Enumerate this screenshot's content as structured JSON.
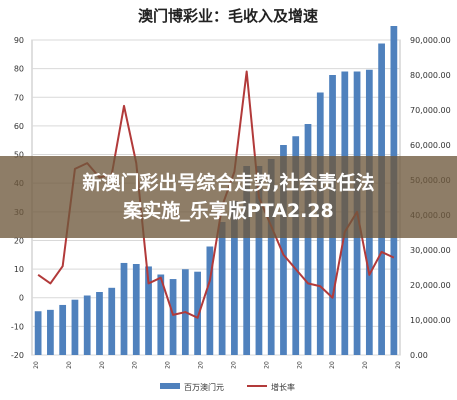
{
  "overlay": {
    "line1": "新澳门彩出号综合走势,社会责任法",
    "line2": "案实施_乐享版PTA2.28"
  },
  "chart_data": {
    "type": "bar",
    "title": "澳门博彩业：毛收入及增速",
    "xlabel": "",
    "ylabel_left": "",
    "ylabel_right": "",
    "left_axis": {
      "min": -20,
      "max": 90,
      "step": 10,
      "ticks": [
        "-20",
        "-10",
        "0",
        "10",
        "20",
        "30",
        "40",
        "50",
        "60",
        "70",
        "80",
        "90"
      ]
    },
    "right_axis": {
      "min": 0,
      "max": 90000,
      "step": 10000,
      "ticks": [
        "0.00",
        "10,000.00",
        "20,000.00",
        "30,000.00",
        "40,000.00",
        "50,000.00",
        "60,000.00",
        "70,000.00",
        "80,000.00",
        "90,000.00"
      ]
    },
    "x_tick_labels": [
      "20",
      "20",
      "20",
      "20",
      "20",
      "20",
      "20",
      "20",
      "20",
      "20",
      "20",
      "20"
    ],
    "series": [
      {
        "name": "百万澳门元",
        "type": "bar",
        "axis": "right",
        "color": "#4f81bd",
        "values": [
          12500,
          12900,
          14300,
          15800,
          17000,
          18000,
          19200,
          26300,
          26000,
          25300,
          23000,
          21700,
          24500,
          23800,
          31000,
          38000,
          44000,
          54000,
          54000,
          56000,
          60000,
          62500,
          66000,
          75000,
          80000,
          81000,
          81000,
          81500,
          89000,
          94000
        ]
      },
      {
        "name": "增长率",
        "type": "line",
        "axis": "left",
        "color": "#b23a3a",
        "values": [
          8,
          5,
          11,
          45,
          47,
          42,
          43,
          67,
          47,
          5,
          7,
          -6,
          -5,
          -7,
          6,
          32,
          44,
          79,
          35,
          25,
          15,
          10,
          5,
          4,
          0,
          23,
          30,
          8,
          16,
          14
        ]
      }
    ],
    "legend": {
      "placement": "bottom-center",
      "items": [
        "百万澳门元",
        "增长率"
      ]
    }
  }
}
